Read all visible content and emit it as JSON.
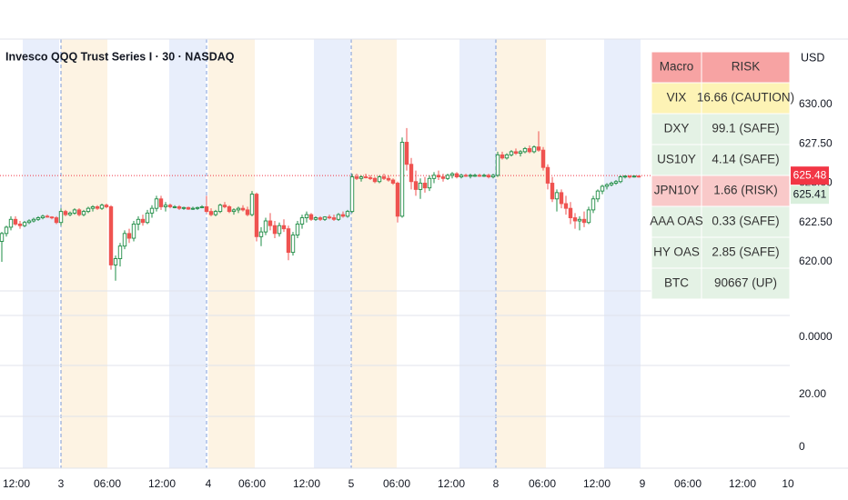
{
  "chart_data": {
    "type": "candlestick",
    "title": "Invesco QQQ Trust Series I · 30 · NASDAQ",
    "currency": "USD",
    "symbol": "QQQ",
    "up_color": "#1e8c45",
    "down_color": "#ef5350",
    "xlim": [
      -13.4,
      160.2
    ],
    "xticks": [
      {
        "value": -9.8,
        "label": "12:00"
      },
      {
        "value": 0,
        "label": "3"
      },
      {
        "value": 10.2,
        "label": "06:00"
      },
      {
        "value": 22.2,
        "label": "12:00"
      },
      {
        "value": 32.4,
        "label": "4"
      },
      {
        "value": 42,
        "label": "06:00"
      },
      {
        "value": 54,
        "label": "12:00"
      },
      {
        "value": 63.8,
        "label": "5"
      },
      {
        "value": 73.8,
        "label": "06:00"
      },
      {
        "value": 85.8,
        "label": "12:00"
      },
      {
        "value": 95.6,
        "label": "8"
      },
      {
        "value": 105.8,
        "label": "06:00"
      },
      {
        "value": 117.8,
        "label": "12:00"
      },
      {
        "value": 127.8,
        "label": "9"
      },
      {
        "value": 137.8,
        "label": "06:00"
      },
      {
        "value": 149.8,
        "label": "12:00"
      },
      {
        "value": 159.8,
        "label": "10"
      }
    ],
    "session_breaks": [
      0,
      32,
      63.8,
      95.6
    ],
    "sessions": [
      {
        "kind": "post",
        "color": "#e8eefb",
        "range": [
          -8.4,
          -0.4
        ]
      },
      {
        "kind": "pre",
        "color": "#fdf3e3",
        "range": [
          0,
          10.2
        ]
      },
      {
        "kind": "post",
        "color": "#e8eefb",
        "range": [
          23.8,
          31.8
        ]
      },
      {
        "kind": "pre",
        "color": "#fdf3e3",
        "range": [
          32.4,
          42.6
        ]
      },
      {
        "kind": "post",
        "color": "#e8eefb",
        "range": [
          55.6,
          63.6
        ]
      },
      {
        "kind": "pre",
        "color": "#fdf3e3",
        "range": [
          63.8,
          73.8
        ]
      },
      {
        "kind": "post",
        "color": "#e8eefb",
        "range": [
          87.6,
          95.6
        ]
      },
      {
        "kind": "pre",
        "color": "#fdf3e3",
        "range": [
          95.6,
          106.6
        ]
      },
      {
        "kind": "post",
        "color": "#e8eefb",
        "range": [
          119.4,
          127.4
        ]
      }
    ],
    "ylim": [
      618.15,
      634.16
    ],
    "yticks": [
      {
        "value": 620,
        "label": "620.00"
      },
      {
        "value": 622.5,
        "label": "622.50"
      },
      {
        "value": 625,
        "label": "625.00"
      },
      {
        "value": 627.5,
        "label": "627.50"
      },
      {
        "value": 630,
        "label": "630.00"
      }
    ],
    "grid": false,
    "ref_line": {
      "value": 625.48,
      "label": "625.48",
      "color": "#f23645"
    },
    "last_price": {
      "value": 625.41,
      "label": "625.41",
      "color": "#2e9e4f"
    },
    "lower_pane_labels": [
      "0.0000",
      "20.00",
      "0"
    ],
    "x": [
      -13,
      -12,
      -11,
      -10,
      -9,
      -8,
      -7,
      -6,
      -5,
      -4,
      -3,
      -2,
      -1,
      0,
      1,
      2,
      3,
      4,
      5,
      6,
      7,
      8,
      9,
      10,
      11,
      12,
      13,
      14,
      15,
      16,
      17,
      18,
      19,
      20,
      21,
      22,
      23,
      24,
      25,
      26,
      27,
      28,
      29,
      30,
      31,
      32,
      33,
      34,
      35,
      36,
      37,
      38,
      39,
      40,
      41,
      42,
      43,
      44,
      45,
      46,
      47,
      48,
      49,
      50,
      51,
      52,
      53,
      54,
      55,
      56,
      57,
      58,
      59,
      60,
      61,
      62,
      63,
      64,
      65,
      66,
      67,
      68,
      69,
      70,
      71,
      72,
      73,
      74,
      75,
      76,
      77,
      78,
      79,
      80,
      81,
      82,
      83,
      84,
      85,
      86,
      87,
      88,
      89,
      90,
      91,
      92,
      93,
      94,
      95,
      96,
      97,
      98,
      99,
      100,
      101,
      102,
      103,
      104,
      105,
      106,
      107,
      108,
      109,
      110,
      111,
      112,
      113,
      114,
      115,
      116,
      117,
      118,
      119,
      120,
      121,
      122,
      123,
      124,
      125,
      126,
      127
    ],
    "ohlc": [
      [
        621.3,
        621.9,
        620.0,
        621.8
      ],
      [
        621.8,
        622.3,
        621.6,
        622.2
      ],
      [
        622.2,
        622.9,
        622.0,
        622.7
      ],
      [
        622.7,
        622.9,
        622.3,
        622.4
      ],
      [
        622.4,
        622.6,
        622.1,
        622.3
      ],
      [
        622.3,
        622.6,
        622.2,
        622.5
      ],
      [
        622.5,
        622.7,
        622.4,
        622.6
      ],
      [
        622.6,
        622.8,
        622.5,
        622.7
      ],
      [
        622.7,
        622.9,
        622.6,
        622.8
      ],
      [
        622.8,
        623.0,
        622.7,
        622.9
      ],
      [
        622.9,
        623.0,
        622.8,
        622.85
      ],
      [
        622.85,
        622.9,
        622.7,
        622.8
      ],
      [
        622.8,
        622.9,
        622.4,
        622.5
      ],
      [
        622.5,
        623.4,
        622.3,
        623.2
      ],
      [
        623.2,
        623.3,
        622.9,
        623.0
      ],
      [
        623.0,
        623.2,
        622.9,
        623.1
      ],
      [
        623.1,
        623.4,
        623.0,
        623.3
      ],
      [
        623.3,
        623.4,
        622.9,
        623.0
      ],
      [
        623.0,
        623.3,
        622.9,
        623.2
      ],
      [
        623.2,
        623.5,
        623.1,
        623.4
      ],
      [
        623.4,
        623.6,
        623.2,
        623.5
      ],
      [
        623.5,
        623.6,
        623.3,
        623.4
      ],
      [
        623.4,
        623.7,
        623.3,
        623.6
      ],
      [
        623.6,
        623.7,
        623.4,
        623.5
      ],
      [
        623.5,
        623.6,
        619.5,
        619.8
      ],
      [
        619.8,
        620.4,
        618.8,
        620.2
      ],
      [
        620.2,
        621.2,
        619.7,
        621.0
      ],
      [
        621.0,
        622.0,
        620.8,
        621.8
      ],
      [
        621.8,
        622.1,
        621.2,
        621.5
      ],
      [
        621.5,
        622.6,
        621.3,
        622.4
      ],
      [
        622.4,
        622.9,
        622.0,
        622.7
      ],
      [
        622.7,
        623.0,
        622.3,
        622.5
      ],
      [
        622.5,
        623.3,
        622.4,
        623.1
      ],
      [
        623.1,
        623.6,
        622.8,
        623.4
      ],
      [
        623.4,
        624.2,
        623.2,
        624.0
      ],
      [
        624.0,
        624.2,
        623.3,
        623.5
      ],
      [
        623.5,
        623.8,
        623.2,
        623.6
      ],
      [
        623.6,
        623.7,
        623.4,
        623.5
      ],
      [
        623.5,
        623.6,
        623.4,
        623.5
      ],
      [
        623.5,
        623.6,
        623.3,
        623.4
      ],
      [
        623.4,
        623.5,
        623.3,
        623.45
      ],
      [
        623.45,
        623.5,
        623.3,
        623.35
      ],
      [
        623.35,
        623.5,
        623.3,
        623.4
      ],
      [
        623.4,
        623.5,
        623.3,
        623.45
      ],
      [
        623.45,
        623.6,
        623.4,
        623.5
      ],
      [
        623.5,
        624.2,
        623.1,
        623.2
      ],
      [
        623.2,
        623.4,
        622.9,
        623.0
      ],
      [
        623.0,
        623.3,
        622.9,
        623.2
      ],
      [
        623.2,
        623.7,
        623.1,
        623.6
      ],
      [
        623.6,
        623.8,
        623.4,
        623.5
      ],
      [
        623.5,
        623.6,
        623.1,
        623.2
      ],
      [
        623.2,
        623.4,
        623.0,
        623.3
      ],
      [
        623.3,
        623.5,
        623.1,
        623.4
      ],
      [
        623.4,
        623.6,
        623.2,
        623.3
      ],
      [
        623.3,
        623.5,
        622.9,
        623.0
      ],
      [
        623.0,
        624.5,
        622.9,
        624.3
      ],
      [
        624.3,
        624.4,
        621.3,
        621.6
      ],
      [
        621.6,
        622.2,
        621.0,
        621.9
      ],
      [
        621.9,
        622.8,
        621.7,
        622.6
      ],
      [
        622.6,
        623.1,
        622.0,
        622.3
      ],
      [
        622.3,
        622.6,
        621.5,
        621.8
      ],
      [
        621.8,
        622.5,
        621.6,
        622.3
      ],
      [
        622.3,
        622.7,
        621.9,
        622.1
      ],
      [
        622.1,
        622.3,
        620.1,
        620.6
      ],
      [
        620.6,
        621.9,
        620.4,
        621.7
      ],
      [
        621.7,
        622.6,
        621.5,
        622.4
      ],
      [
        622.4,
        623.0,
        622.1,
        622.8
      ],
      [
        622.8,
        623.2,
        622.5,
        623.0
      ],
      [
        623.0,
        623.1,
        622.6,
        622.7
      ],
      [
        622.7,
        622.9,
        622.6,
        622.8
      ],
      [
        622.8,
        622.9,
        622.6,
        622.7
      ],
      [
        622.7,
        622.9,
        622.6,
        622.85
      ],
      [
        622.85,
        623.0,
        622.7,
        622.8
      ],
      [
        622.8,
        623.0,
        622.6,
        622.7
      ],
      [
        622.7,
        623.1,
        622.6,
        623.0
      ],
      [
        623.0,
        623.2,
        622.8,
        622.9
      ],
      [
        622.9,
        623.3,
        622.8,
        623.2
      ],
      [
        623.2,
        625.6,
        623.1,
        625.4
      ],
      [
        625.4,
        625.6,
        625.2,
        625.3
      ],
      [
        625.3,
        625.5,
        625.1,
        625.4
      ],
      [
        625.4,
        625.6,
        625.3,
        625.35
      ],
      [
        625.35,
        625.5,
        625.2,
        625.3
      ],
      [
        625.3,
        625.4,
        625.0,
        625.1
      ],
      [
        625.1,
        625.5,
        625.0,
        625.4
      ],
      [
        625.4,
        625.6,
        625.2,
        625.3
      ],
      [
        625.3,
        625.5,
        625.1,
        625.2
      ],
      [
        625.2,
        625.3,
        624.9,
        625.0
      ],
      [
        625.0,
        625.1,
        622.5,
        622.9
      ],
      [
        622.9,
        627.9,
        622.8,
        627.6
      ],
      [
        627.6,
        628.5,
        625.8,
        626.2
      ],
      [
        626.2,
        626.6,
        624.6,
        625.1
      ],
      [
        625.1,
        625.8,
        624.2,
        624.6
      ],
      [
        624.6,
        625.3,
        624.0,
        625.0
      ],
      [
        625.0,
        625.4,
        624.4,
        624.7
      ],
      [
        624.7,
        625.5,
        624.5,
        625.3
      ],
      [
        625.3,
        625.7,
        625.0,
        625.5
      ],
      [
        625.5,
        625.8,
        625.2,
        625.4
      ],
      [
        625.4,
        625.6,
        625.1,
        625.3
      ],
      [
        625.3,
        625.6,
        625.2,
        625.5
      ],
      [
        625.5,
        625.7,
        625.3,
        625.6
      ],
      [
        625.6,
        625.7,
        625.3,
        625.4
      ],
      [
        625.4,
        625.6,
        625.3,
        625.5
      ],
      [
        625.5,
        625.6,
        625.4,
        625.45
      ],
      [
        625.45,
        625.6,
        625.3,
        625.5
      ],
      [
        625.5,
        625.6,
        625.4,
        625.5
      ],
      [
        625.5,
        625.6,
        625.4,
        625.45
      ],
      [
        625.45,
        625.6,
        625.4,
        625.5
      ],
      [
        625.5,
        625.6,
        625.3,
        625.4
      ],
      [
        625.4,
        625.6,
        625.3,
        625.5
      ],
      [
        625.5,
        627.0,
        625.4,
        626.8
      ],
      [
        626.8,
        627.0,
        626.5,
        626.6
      ],
      [
        626.6,
        626.9,
        626.5,
        626.8
      ],
      [
        626.8,
        627.1,
        626.7,
        627.0
      ],
      [
        627.0,
        627.2,
        626.8,
        626.9
      ],
      [
        626.9,
        627.1,
        626.7,
        627.0
      ],
      [
        627.0,
        627.3,
        626.9,
        627.2
      ],
      [
        627.2,
        627.4,
        626.9,
        627.0
      ],
      [
        627.0,
        627.4,
        626.9,
        627.3
      ],
      [
        627.3,
        628.3,
        627.0,
        627.1
      ],
      [
        627.1,
        627.3,
        625.8,
        626.0
      ],
      [
        626.0,
        626.2,
        624.6,
        625.0
      ],
      [
        625.0,
        625.4,
        623.8,
        624.0
      ],
      [
        624.0,
        624.6,
        623.2,
        624.4
      ],
      [
        624.4,
        624.6,
        623.4,
        623.7
      ],
      [
        623.7,
        624.2,
        623.0,
        623.4
      ],
      [
        623.4,
        623.8,
        622.4,
        622.8
      ],
      [
        622.8,
        623.1,
        622.1,
        622.6
      ],
      [
        622.6,
        622.9,
        622.0,
        622.7
      ],
      [
        622.7,
        623.2,
        622.2,
        622.5
      ],
      [
        622.5,
        623.5,
        622.4,
        623.3
      ],
      [
        623.3,
        624.2,
        623.1,
        624.0
      ],
      [
        624.0,
        624.6,
        623.8,
        624.5
      ],
      [
        624.5,
        624.9,
        624.3,
        624.8
      ],
      [
        624.8,
        625.0,
        624.6,
        624.9
      ],
      [
        624.9,
        625.1,
        624.8,
        625.0
      ],
      [
        625.0,
        625.2,
        624.9,
        625.1
      ],
      [
        625.1,
        625.5,
        625.0,
        625.4
      ],
      [
        625.4,
        625.5,
        625.3,
        625.45
      ],
      [
        625.45,
        625.5,
        625.3,
        625.4
      ],
      [
        625.4,
        625.5,
        625.35,
        625.45
      ],
      [
        625.45,
        625.5,
        625.35,
        625.41
      ]
    ],
    "table": {
      "header": {
        "cells": [
          "Macro",
          "RISK"
        ],
        "color": "#f7a3a3"
      },
      "rows": [
        {
          "cells": [
            "VIX",
            "16.66 (CAUTION)"
          ],
          "color": "#fdf3b5"
        },
        {
          "cells": [
            "DXY",
            "99.1 (SAFE)"
          ],
          "color": "#e4f2e5"
        },
        {
          "cells": [
            "US10Y",
            "4.14 (SAFE)"
          ],
          "color": "#e4f2e5"
        },
        {
          "cells": [
            "JPN10Y",
            "1.66 (RISK)"
          ],
          "color": "#f9c9c9"
        },
        {
          "cells": [
            "AAA OAS",
            "0.33 (SAFE)"
          ],
          "color": "#e4f2e5"
        },
        {
          "cells": [
            "HY OAS",
            "2.85 (SAFE)"
          ],
          "color": "#e4f2e5"
        },
        {
          "cells": [
            "BTC",
            "90667 (UP)"
          ],
          "color": "#e4f2e5"
        }
      ]
    }
  }
}
